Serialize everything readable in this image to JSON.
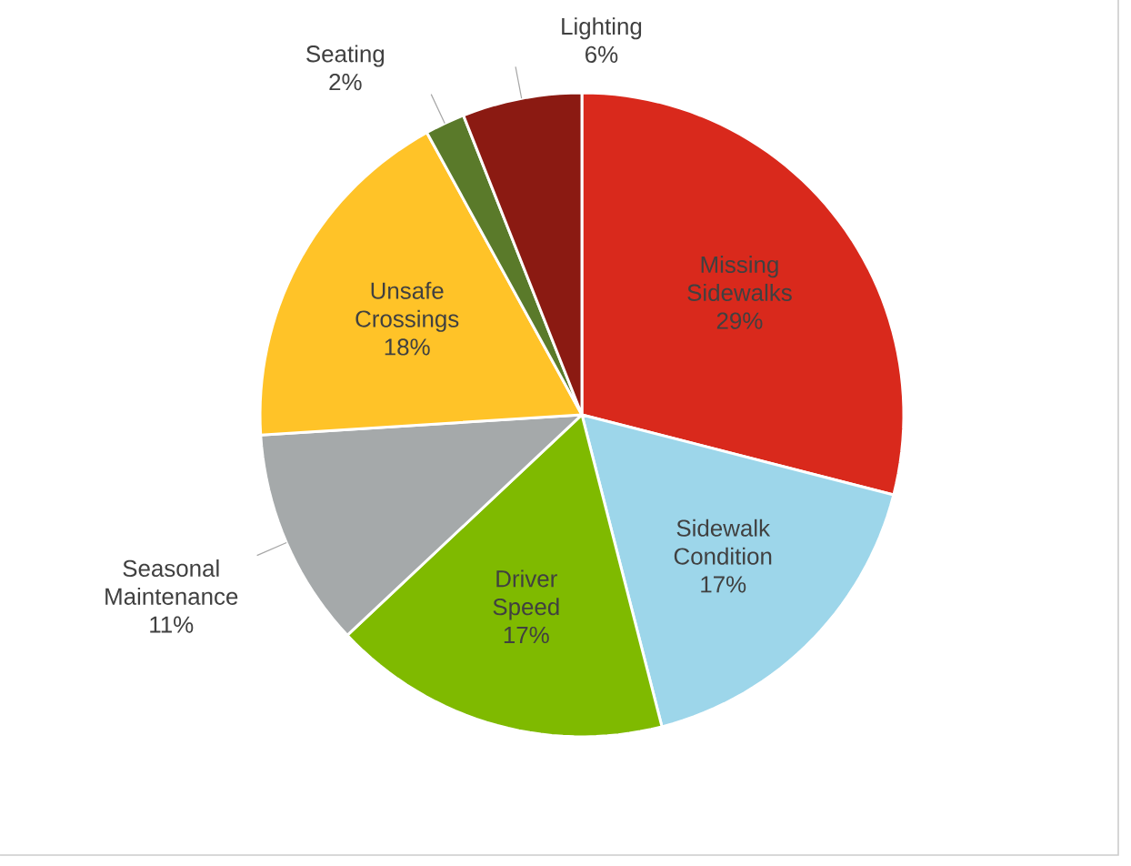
{
  "chart_data": {
    "type": "pie",
    "categories": [
      "Missing Sidewalks",
      "Sidewalk Condition",
      "Driver Speed",
      "Seasonal Maintenance",
      "Unsafe Crossings",
      "Seating",
      "Lighting"
    ],
    "values": [
      29,
      17,
      17,
      11,
      18,
      2,
      6
    ],
    "value_labels": [
      "29%",
      "17%",
      "17%",
      "11%",
      "18%",
      "2%",
      "6%"
    ],
    "colors": [
      "#d9291c",
      "#9dd6ea",
      "#7fba00",
      "#a5a9aa",
      "#ffc328",
      "#5a7a2a",
      "#8b1a12"
    ]
  }
}
